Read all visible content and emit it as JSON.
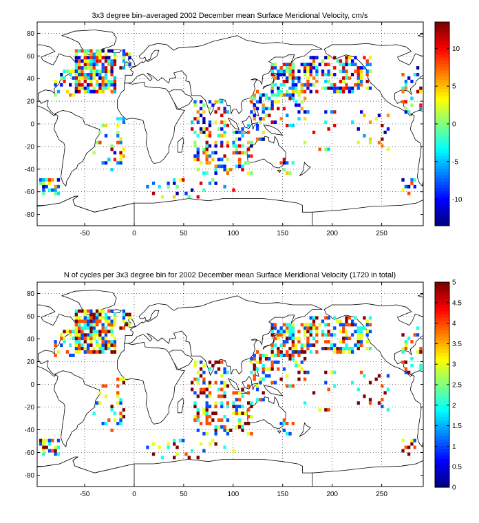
{
  "panels": [
    {
      "title": "3x3 degree bin–averaged 2002 December mean Surface Meridional Velocity, cm/s",
      "map": {
        "x_range": [
          -98,
          292
        ],
        "y_range": [
          -90,
          90
        ],
        "x_ticks": [
          -50,
          0,
          50,
          100,
          150,
          200,
          250
        ],
        "y_ticks": [
          -80,
          -60,
          -40,
          -20,
          0,
          20,
          40,
          60,
          80
        ],
        "grid": "dotted"
      },
      "colorbar": {
        "range": [
          -13.5,
          13.5
        ],
        "ticks": [
          -10,
          -5,
          0,
          5,
          10
        ],
        "colormap": "jet"
      },
      "value_mode": "signed"
    },
    {
      "title": "N of cycles per 3x3 degree bin for 2002 December mean Surface Meridional Velocity (1720 in total)",
      "map": {
        "x_range": [
          -98,
          292
        ],
        "y_range": [
          -90,
          90
        ],
        "x_ticks": [
          -50,
          0,
          50,
          100,
          150,
          200,
          250
        ],
        "y_ticks": [
          -80,
          -60,
          -40,
          -20,
          0,
          20,
          40,
          60,
          80
        ],
        "grid": "dotted"
      },
      "colorbar": {
        "range": [
          0,
          5
        ],
        "ticks": [
          0,
          0.5,
          1,
          1.5,
          2,
          2.5,
          3,
          3.5,
          4,
          4.5,
          5
        ],
        "colormap": "jet"
      },
      "value_mode": "count"
    }
  ],
  "chart_data": {
    "type": "heatmap",
    "bin_size_deg": 3,
    "bin_regions_lon_lat": [
      {
        "lon": [
          -60,
          -20
        ],
        "lat": [
          28,
          64
        ],
        "density": 0.75
      },
      {
        "lon": [
          -82,
          -58
        ],
        "lat": [
          24,
          46
        ],
        "density": 0.35
      },
      {
        "lon": [
          -20,
          -5
        ],
        "lat": [
          48,
          64
        ],
        "density": 0.45
      },
      {
        "lon": [
          140,
          175
        ],
        "lat": [
          24,
          52
        ],
        "density": 0.55
      },
      {
        "lon": [
          175,
          240
        ],
        "lat": [
          28,
          60
        ],
        "density": 0.45
      },
      {
        "lon": [
          118,
          140
        ],
        "lat": [
          0,
          30
        ],
        "density": 0.4
      },
      {
        "lon": [
          142,
          175
        ],
        "lat": [
          -2,
          22
        ],
        "density": 0.3
      },
      {
        "lon": [
          58,
          95
        ],
        "lat": [
          -10,
          20
        ],
        "density": 0.3
      },
      {
        "lon": [
          60,
          120
        ],
        "lat": [
          -45,
          -15
        ],
        "density": 0.3
      },
      {
        "lon": [
          100,
          130
        ],
        "lat": [
          -15,
          0
        ],
        "density": 0.35
      },
      {
        "lon": [
          -40,
          -10
        ],
        "lat": [
          -40,
          5
        ],
        "density": 0.18
      },
      {
        "lon": [
          160,
          260
        ],
        "lat": [
          -22,
          10
        ],
        "density": 0.08
      },
      {
        "lon": [
          -95,
          -75
        ],
        "lat": [
          -62,
          -50
        ],
        "density": 0.5
      },
      {
        "lon": [
          270,
          285
        ],
        "lat": [
          -62,
          -50
        ],
        "density": 0.5
      },
      {
        "lon": [
          10,
          100
        ],
        "lat": [
          -65,
          -48
        ],
        "density": 0.12
      },
      {
        "lon": [
          270,
          290
        ],
        "lat": [
          10,
          50
        ],
        "density": 0.25
      },
      {
        "lon": [
          140,
          160
        ],
        "lat": [
          -45,
          -30
        ],
        "density": 0.2
      }
    ]
  }
}
